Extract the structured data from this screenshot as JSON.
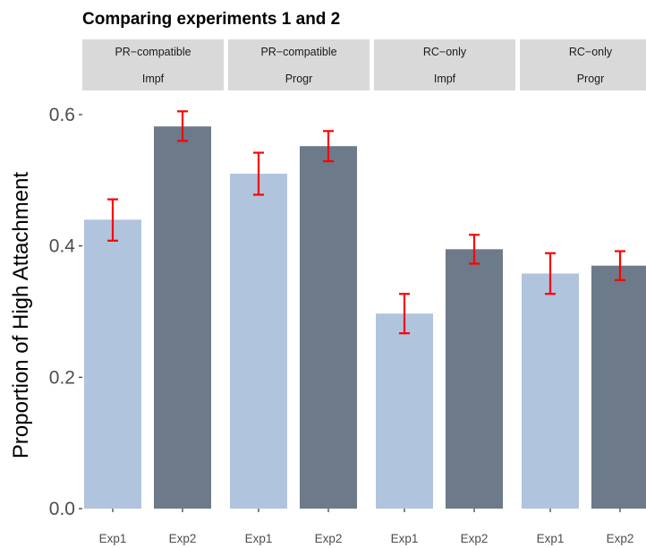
{
  "chart_data": {
    "type": "bar",
    "title": "Comparing experiments 1 and 2",
    "ylabel": "Proportion of High Attachment",
    "xlabel": "",
    "ylim": [
      0,
      0.63
    ],
    "yticks": [
      0.0,
      0.2,
      0.4,
      0.6
    ],
    "ytick_labels": [
      "0.0",
      "0.2",
      "0.4",
      "0.6"
    ],
    "grid": false,
    "legend": "none",
    "categories": [
      "Exp1",
      "Exp2"
    ],
    "colors": {
      "Exp1": "#b0c4de",
      "Exp2": "#6c7a89",
      "error_bar": "#ff0000",
      "strip_bg": "#d9d9d9"
    },
    "facets": [
      {
        "label_top": "PR−compatible",
        "label_bottom": "Impf",
        "bars": [
          {
            "x": "Exp1",
            "y": 0.44,
            "ymin": 0.408,
            "ymax": 0.471
          },
          {
            "x": "Exp2",
            "y": 0.582,
            "ymin": 0.56,
            "ymax": 0.605
          }
        ]
      },
      {
        "label_top": "PR−compatible",
        "label_bottom": "Progr",
        "bars": [
          {
            "x": "Exp1",
            "y": 0.51,
            "ymin": 0.478,
            "ymax": 0.542
          },
          {
            "x": "Exp2",
            "y": 0.552,
            "ymin": 0.529,
            "ymax": 0.575
          }
        ]
      },
      {
        "label_top": "RC−only",
        "label_bottom": "Impf",
        "bars": [
          {
            "x": "Exp1",
            "y": 0.297,
            "ymin": 0.267,
            "ymax": 0.327
          },
          {
            "x": "Exp2",
            "y": 0.395,
            "ymin": 0.373,
            "ymax": 0.417
          }
        ]
      },
      {
        "label_top": "RC−only",
        "label_bottom": "Progr",
        "bars": [
          {
            "x": "Exp1",
            "y": 0.358,
            "ymin": 0.327,
            "ymax": 0.389
          },
          {
            "x": "Exp2",
            "y": 0.37,
            "ymin": 0.348,
            "ymax": 0.392
          }
        ]
      }
    ]
  }
}
